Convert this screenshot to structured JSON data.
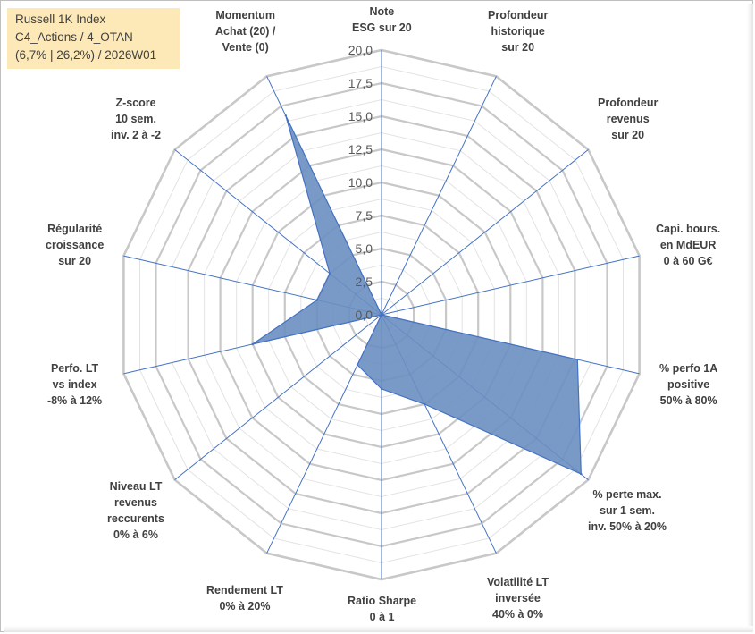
{
  "info_box": {
    "line1": "Russell 1K Index",
    "line2": "C4_Actions / 4_OTAN",
    "line3": "(6,7% | 26,2%) / 2026W01"
  },
  "colors": {
    "fill": "#6a8fc0",
    "stroke": "#4472c4",
    "grid": "#c8c8c8",
    "spoke": "#4472c4"
  },
  "chart_data": {
    "type": "radar",
    "rmax": 20,
    "rings": [
      0,
      2.5,
      5,
      7.5,
      10,
      12.5,
      15,
      17.5,
      20
    ],
    "tick_labels": [
      "0,0",
      "2,5",
      "5,0",
      "7,5",
      "10,0",
      "12,5",
      "15,0",
      "17,5",
      "20,0"
    ],
    "axes": [
      [
        "Note",
        "ESG sur 20"
      ],
      [
        "Profondeur",
        "historique",
        "sur 20"
      ],
      [
        "Profondeur",
        "revenus",
        "sur 20"
      ],
      [
        "Capi. bours.",
        "en MdEUR",
        "0 à 60 G€"
      ],
      [
        "% perfo 1A",
        "positive",
        "50% à 80%"
      ],
      [
        "% perte max.",
        "sur 1 sem.",
        "inv. 50% à 20%"
      ],
      [
        "Volatilité LT",
        "inversée",
        "40% à 0%"
      ],
      [
        "Ratio Sharpe",
        "0 à 1"
      ],
      [
        "Rendement LT",
        "0% à 20%"
      ],
      [
        "Niveau LT",
        "revenus",
        "reccurents",
        "0% à 6%"
      ],
      [
        "Perfo. LT",
        "vs index",
        "-8% à 12%"
      ],
      [
        "Régularité",
        "croissance",
        "sur 20"
      ],
      [
        "Z-score",
        "10 sem.",
        "inv. 2 à -2"
      ],
      [
        "Momentum",
        "Achat (20) /",
        "Vente (0)"
      ]
    ],
    "values": [
      0,
      0,
      0,
      0,
      15.2,
      19.3,
      7.5,
      5.6,
      4.2,
      0,
      10.0,
      5.0,
      5.0,
      16.7
    ]
  }
}
